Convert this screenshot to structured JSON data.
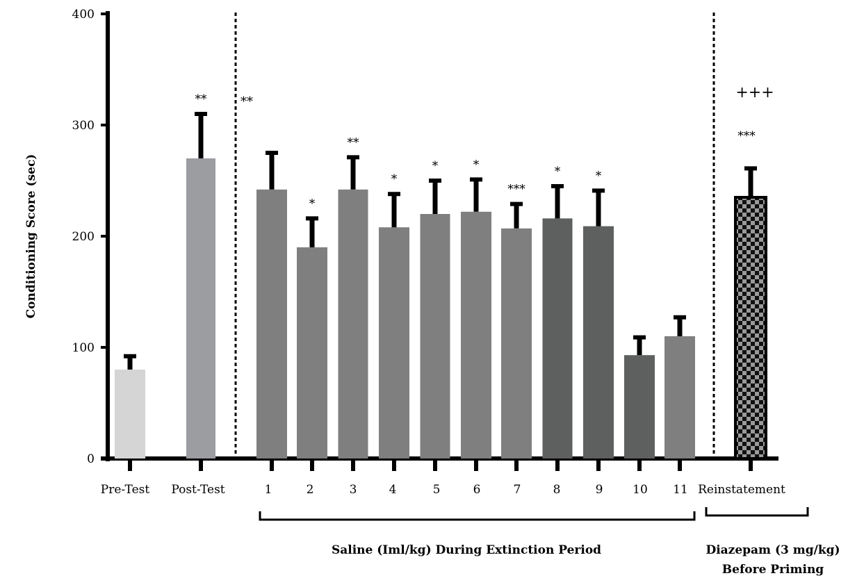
{
  "chart_data": {
    "type": "bar",
    "ylabel": "Conditioning Score (sec)",
    "ylim": [
      0,
      400
    ],
    "yticks": [
      0,
      100,
      200,
      300,
      400
    ],
    "grid": false,
    "categories": [
      "Pre-Test",
      "Post-Test",
      "1",
      "2",
      "3",
      "4",
      "5",
      "6",
      "7",
      "8",
      "9",
      "10",
      "11",
      "Reinstatement"
    ],
    "values": [
      80,
      270,
      242,
      190,
      242,
      208,
      220,
      222,
      207,
      216,
      209,
      93,
      110,
      235
    ],
    "errors": [
      12,
      40,
      33,
      26,
      29,
      30,
      30,
      29,
      22,
      29,
      32,
      16,
      17,
      26
    ],
    "significance": [
      "",
      "**",
      "",
      "*",
      "**",
      "*",
      "*",
      "*",
      "***",
      "*",
      "*",
      "",
      "",
      "***"
    ],
    "bar_colors": [
      "#d5d5d5",
      "#9c9da1",
      "#7f7f7f",
      "#7f7f7f",
      "#7f7f7f",
      "#7f7f7f",
      "#7f7f7f",
      "#7f7f7f",
      "#7f7f7f",
      "#5e605f",
      "#5e605f",
      "#5e605f",
      "#7f7f7f",
      "checkered"
    ],
    "annotations": [
      {
        "text": "**",
        "position": "after-first-divider"
      },
      {
        "text": "+++",
        "position": "above-reinstatement"
      }
    ],
    "group_labels": [
      {
        "text": "Saline (Iml/kg) During Extinction Period",
        "lines": [
          "Saline (Iml/kg) During Extinction Period"
        ]
      },
      {
        "text": "Diazepam (3 mg/kg) Before Priming",
        "lines": [
          "Diazepam (3 mg/kg)",
          "Before Priming"
        ]
      }
    ]
  }
}
